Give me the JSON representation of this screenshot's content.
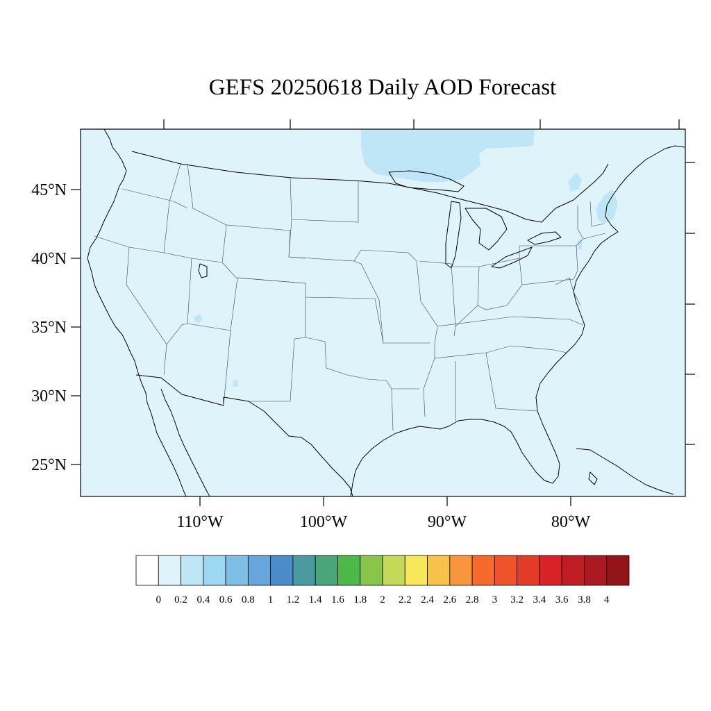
{
  "title": "GEFS 20250618 Daily AOD Forecast",
  "map": {
    "background_fill": "#dff3fb",
    "land_lines": "#000000",
    "lat_labels": [
      "45°N",
      "40°N",
      "35°N",
      "30°N",
      "25°N"
    ],
    "lon_labels": [
      "110°W",
      "100°W",
      "90°W",
      "80°W"
    ]
  },
  "colorbar": {
    "labels": [
      "0",
      "0.2",
      "0.4",
      "0.6",
      "0.8",
      "1",
      "1.2",
      "1.4",
      "1.6",
      "1.8",
      "2",
      "2.2",
      "2.4",
      "2.6",
      "2.8",
      "3",
      "3.2",
      "3.4",
      "3.6",
      "3.8",
      "4"
    ],
    "colors": [
      "#ffffff",
      "#dff3fb",
      "#bee6f7",
      "#9dd8f3",
      "#7fbfe6",
      "#67a6dc",
      "#4b8bca",
      "#4a9aa0",
      "#48a679",
      "#4cb848",
      "#88c54b",
      "#c4d85a",
      "#f7e85b",
      "#f8c14a",
      "#f8963e",
      "#f5692d",
      "#ee532a",
      "#e23c29",
      "#d72229",
      "#bf1c24",
      "#aa1a20",
      "#921519"
    ]
  }
}
